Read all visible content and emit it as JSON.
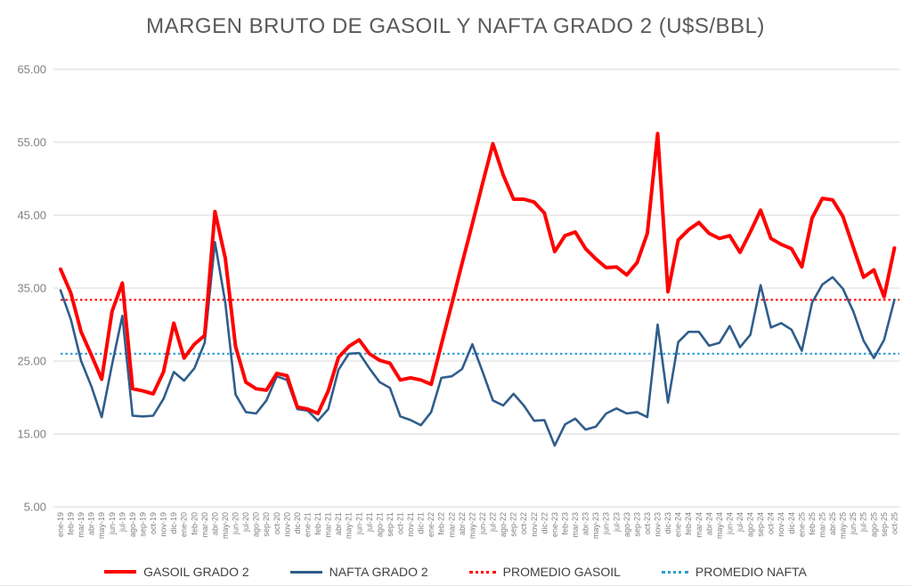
{
  "chart_data": {
    "type": "line",
    "title": "MARGEN BRUTO DE GASOIL Y NAFTA GRADO 2 (U$S/BBL)",
    "ylim": [
      5,
      65
    ],
    "yticks": [
      "65.00",
      "55.00",
      "45.00",
      "35.00",
      "25.00",
      "15.00",
      "5.00"
    ],
    "ytick_values": [
      65,
      55,
      45,
      35,
      25,
      15,
      5
    ],
    "grid": true,
    "legend_position": "bottom",
    "categories": [
      "ene-19",
      "feb-19",
      "mar-19",
      "abr-19",
      "may-19",
      "jun-19",
      "jul-19",
      "ago-19",
      "sep-19",
      "oct-19",
      "nov-19",
      "dic-19",
      "ene-20",
      "feb-20",
      "mar-20",
      "abr-20",
      "may-20",
      "jun-20",
      "jul-20",
      "ago-20",
      "sep-20",
      "oct-20",
      "nov-20",
      "dic-20",
      "ene-21",
      "feb-21",
      "mar-21",
      "abr-21",
      "may-21",
      "jun-21",
      "jul-21",
      "ago-21",
      "sep-21",
      "oct-21",
      "nov-21",
      "dic-21",
      "ene-22",
      "feb-22",
      "mar-22",
      "abr-22",
      "may-22",
      "jun-22",
      "jul-22",
      "ago-22",
      "sep-22",
      "oct-22",
      "nov-22",
      "dic-22",
      "ene-23",
      "feb-23",
      "mar-23",
      "abr-23",
      "may-23",
      "jun-23",
      "jul-23",
      "ago-23",
      "sep-23",
      "oct-23",
      "nov-23",
      "dic-23",
      "ene-24",
      "feb-24",
      "mar-24",
      "abr-24",
      "may-24",
      "jun-24",
      "jul-24",
      "ago-24",
      "sep-24",
      "oct-24",
      "nov-24",
      "dic-24",
      "ene-25",
      "feb-25",
      "mar-25",
      "abr-25",
      "may-25",
      "jun-25",
      "jul-25",
      "ago-25",
      "sep-25",
      "oct-25"
    ],
    "series": [
      {
        "name": "GASOIL GRADO 2",
        "color": "#FF0000",
        "style": "solid",
        "values": [
          37.6,
          34.3,
          29.0,
          25.8,
          22.5,
          31.8,
          35.7,
          21.2,
          20.9,
          20.5,
          23.5,
          30.2,
          25.4,
          27.3,
          28.5,
          45.5,
          39.1,
          27.0,
          22.1,
          21.2,
          21.0,
          23.3,
          23.0,
          18.7,
          18.4,
          17.8,
          20.9,
          25.5,
          27.0,
          27.9,
          26.0,
          25.1,
          24.7,
          22.4,
          22.7,
          22.4,
          21.8,
          27.3,
          32.8,
          38.4,
          43.8,
          49.4,
          54.8,
          50.5,
          47.2,
          47.2,
          46.8,
          45.3,
          40.0,
          42.2,
          42.7,
          40.4,
          39.0,
          37.8,
          37.9,
          36.8,
          38.5,
          42.5,
          56.2,
          34.5,
          41.6,
          43.0,
          44.0,
          42.5,
          41.8,
          42.2,
          39.9,
          42.7,
          45.7,
          41.8,
          41.0,
          40.4,
          37.9,
          44.6,
          47.3,
          47.1,
          44.8,
          40.6,
          36.5,
          37.5,
          33.8,
          40.5
        ]
      },
      {
        "name": "NAFTA GRADO 2",
        "color": "#2F5D8C",
        "style": "solid",
        "values": [
          34.7,
          30.7,
          25.0,
          21.5,
          17.3,
          24.5,
          31.2,
          17.5,
          17.4,
          17.5,
          19.8,
          23.5,
          22.3,
          24.0,
          27.5,
          41.3,
          33.0,
          20.4,
          18.0,
          17.8,
          19.6,
          22.9,
          22.4,
          18.4,
          18.2,
          16.8,
          18.4,
          23.8,
          26.0,
          26.1,
          24.0,
          22.1,
          21.3,
          17.4,
          16.9,
          16.2,
          18.0,
          22.7,
          22.9,
          23.9,
          27.3,
          23.5,
          19.6,
          18.9,
          20.5,
          18.9,
          16.8,
          16.9,
          13.4,
          16.3,
          17.1,
          15.6,
          16.0,
          17.8,
          18.5,
          17.8,
          18.0,
          17.3,
          30.0,
          19.3,
          27.6,
          29.0,
          29.0,
          27.1,
          27.5,
          29.8,
          26.9,
          28.6,
          35.4,
          29.6,
          30.2,
          29.3,
          26.4,
          33.0,
          35.5,
          36.5,
          34.9,
          31.8,
          27.8,
          25.4,
          27.9,
          33.4
        ]
      },
      {
        "name": "PROMEDIO GASOIL",
        "color": "#FF0000",
        "style": "dotted",
        "constant": 33.4
      },
      {
        "name": "PROMEDIO NAFTA",
        "color": "#2E9BD6",
        "style": "dotted",
        "constant": 26.0
      }
    ]
  },
  "colors": {
    "gasoil_line": "#FF0000",
    "nafta_line": "#2F5D8C",
    "promedio_gasoil_line": "#FF0000",
    "promedio_nafta_line": "#2E9BD6",
    "gridline": "#D9D9D9",
    "title_text": "#595959",
    "axis_text": "#7F7F7F",
    "legend_text": "#404040"
  }
}
